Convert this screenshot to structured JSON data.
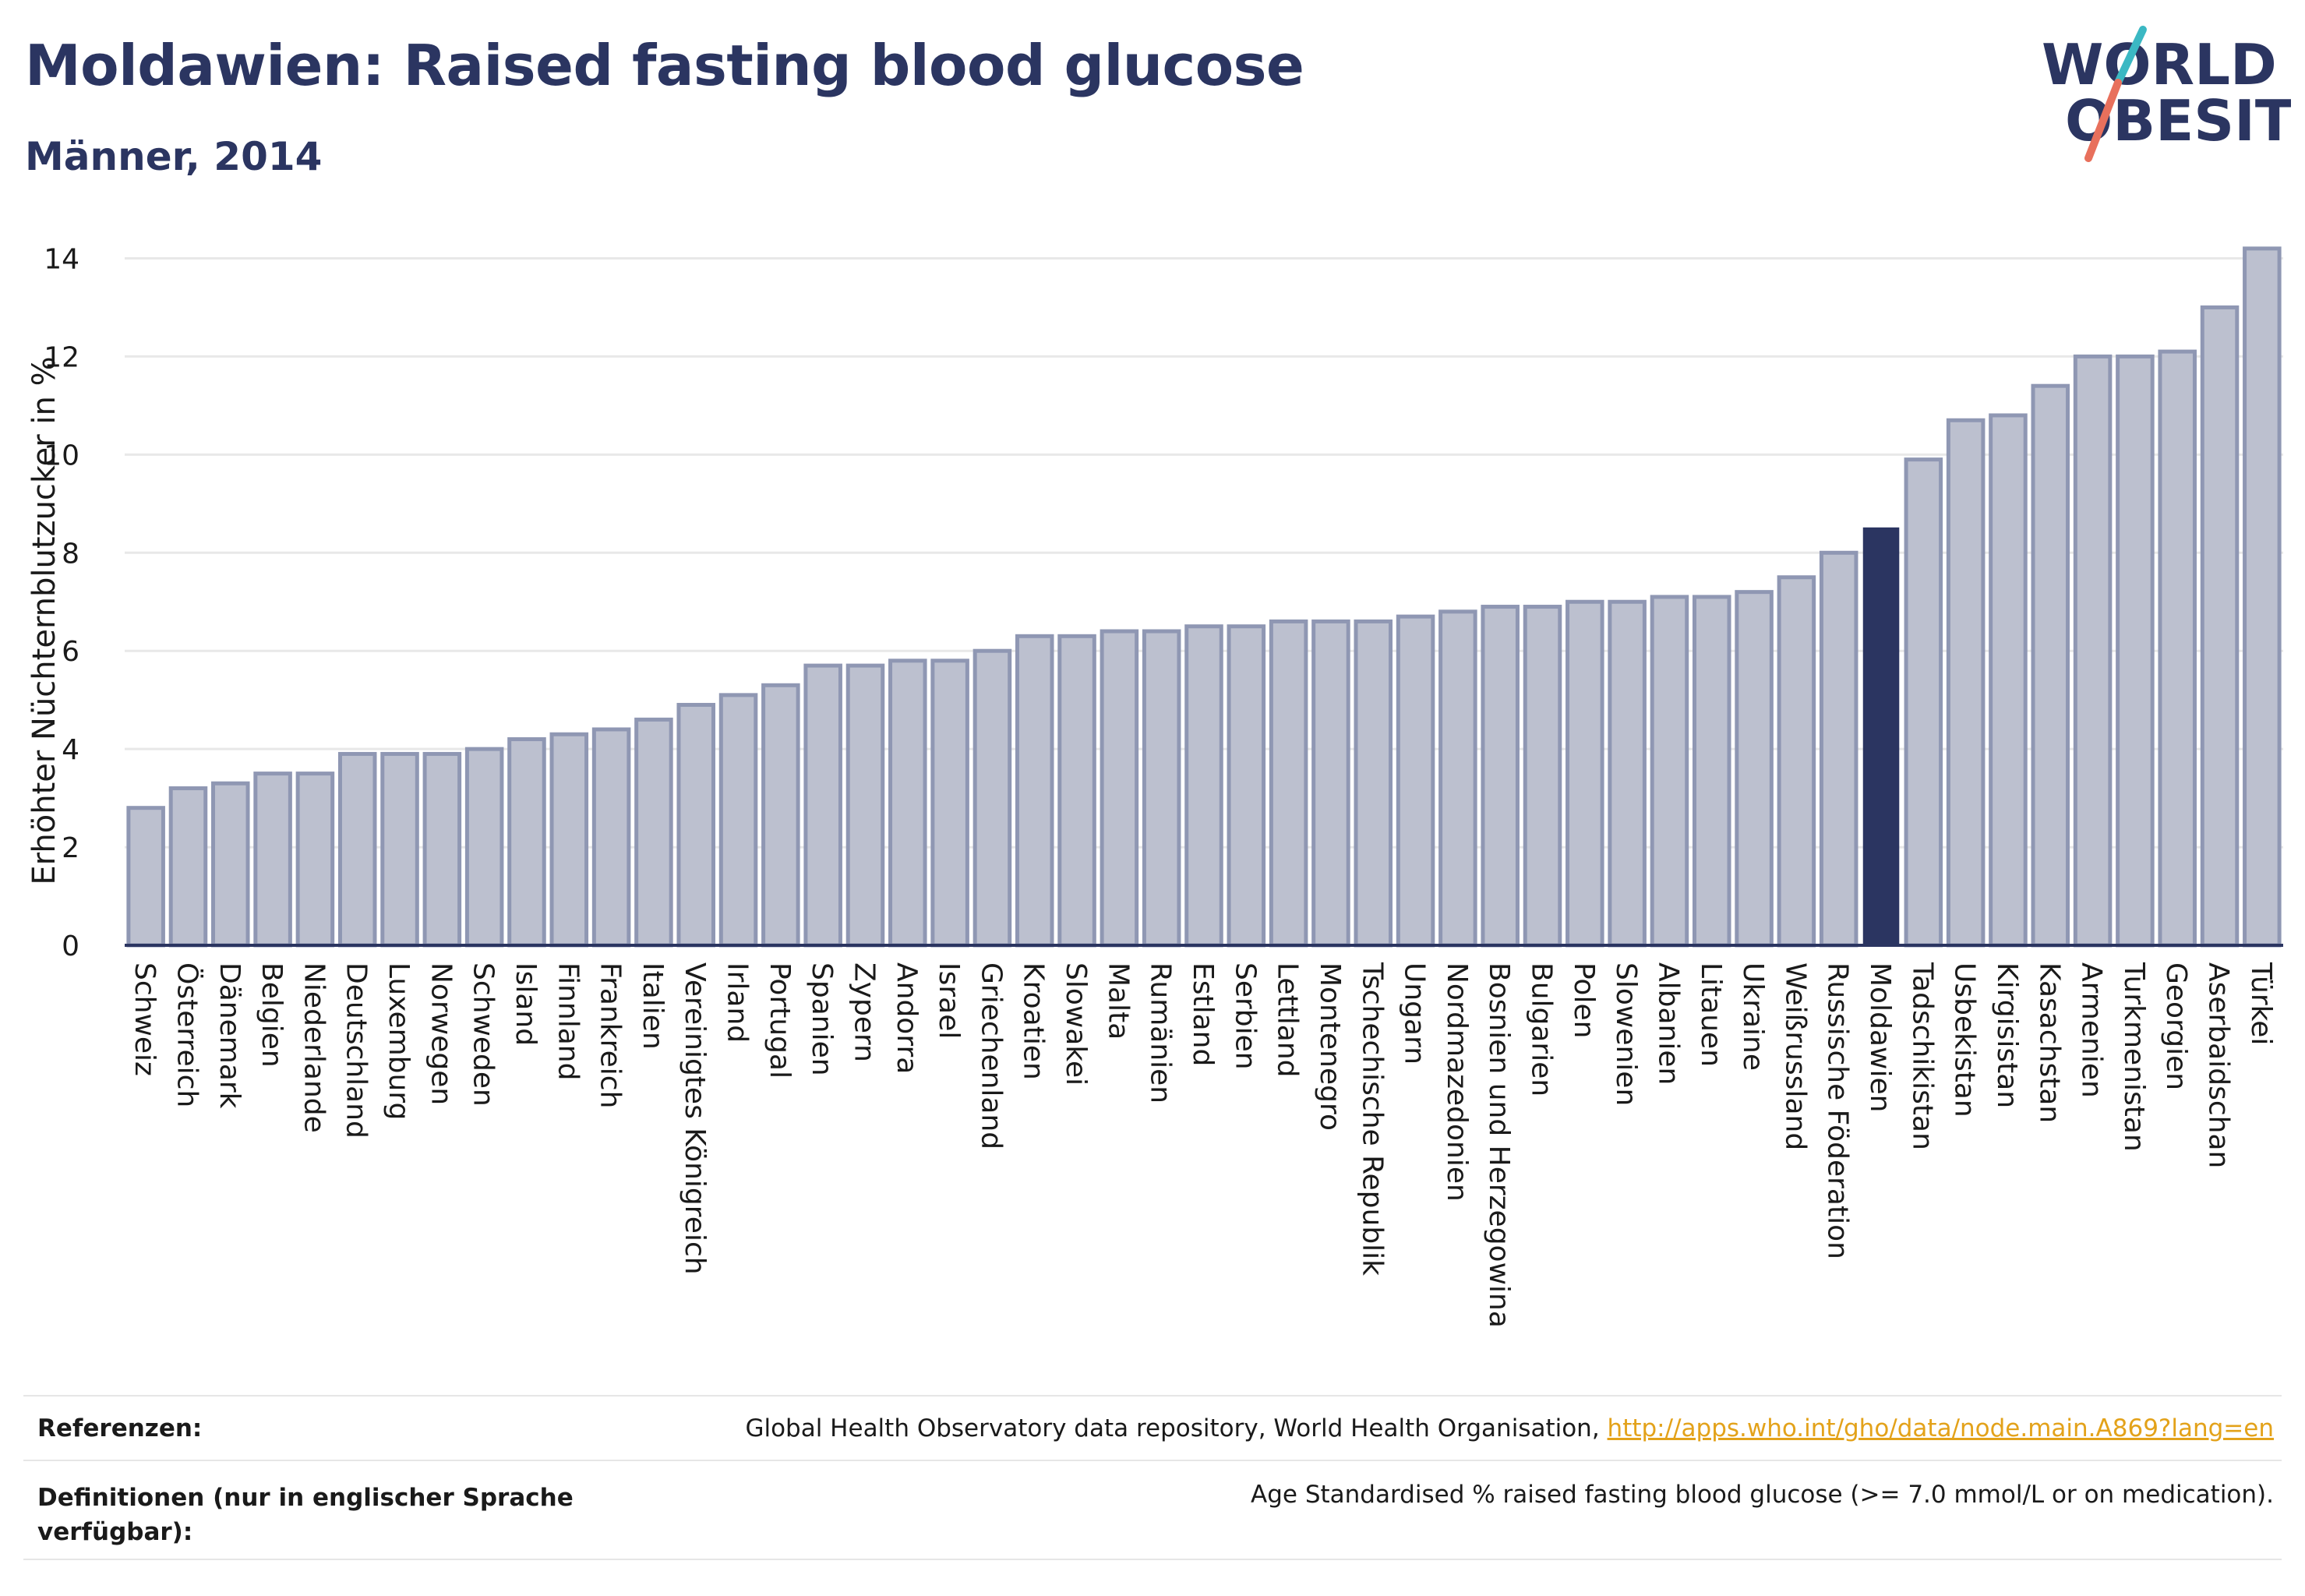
{
  "header": {
    "title": "Moldawien: Raised fasting blood glucose",
    "subtitle": "Männer, 2014"
  },
  "logo": {
    "line1": "WORLD",
    "line2": "OBESITY"
  },
  "colors": {
    "bar_fill": "#bcc0cf",
    "bar_stroke": "#8f97b3",
    "highlight": "#2b3561",
    "grid": "#e8e8e8",
    "axis": "#2b3561",
    "link": "#e3a21a",
    "logo_teal": "#3bb8c3",
    "logo_coral": "#e8705c"
  },
  "chart_data": {
    "type": "bar",
    "ylabel": "Erhöhter Nüchternblutzucker in %",
    "ylim": [
      0,
      14.5
    ],
    "yticks": [
      0,
      2,
      4,
      6,
      8,
      10,
      12,
      14
    ],
    "grid": true,
    "highlight": "Moldawien",
    "categories": [
      "Schweiz",
      "Österreich",
      "Dänemark",
      "Belgien",
      "Niederlande",
      "Deutschland",
      "Luxemburg",
      "Norwegen",
      "Schweden",
      "Island",
      "Finnland",
      "Frankreich",
      "Italien",
      "Vereinigtes Königreich",
      "Irland",
      "Portugal",
      "Spanien",
      "Zypern",
      "Andorra",
      "Israel",
      "Griechenland",
      "Kroatien",
      "Slowakei",
      "Malta",
      "Rumänien",
      "Estland",
      "Serbien",
      "Lettland",
      "Montenegro",
      "Tschechische Republik",
      "Ungarn",
      "Nordmazedonien",
      "Bosnien und Herzegowina",
      "Bulgarien",
      "Polen",
      "Slowenien",
      "Albanien",
      "Litauen",
      "Ukraine",
      "Weißrussland",
      "Russische Föderation",
      "Moldawien",
      "Tadschikistan",
      "Usbekistan",
      "Kirgisistan",
      "Kasachstan",
      "Armenien",
      "Turkmenistan",
      "Georgien",
      "Aserbaidschan",
      "Türkei"
    ],
    "values": [
      2.8,
      3.2,
      3.3,
      3.5,
      3.5,
      3.9,
      3.9,
      3.9,
      4.0,
      4.2,
      4.3,
      4.4,
      4.6,
      4.9,
      5.1,
      5.3,
      5.7,
      5.7,
      5.8,
      5.8,
      6.0,
      6.3,
      6.3,
      6.4,
      6.4,
      6.5,
      6.5,
      6.6,
      6.6,
      6.6,
      6.7,
      6.8,
      6.9,
      6.9,
      7.0,
      7.0,
      7.1,
      7.1,
      7.2,
      7.5,
      8.0,
      8.5,
      9.9,
      10.7,
      10.8,
      11.4,
      12.0,
      12.0,
      12.1,
      13.0,
      14.2
    ]
  },
  "footer": {
    "ref_label": "Referenzen:",
    "ref_text": "Global Health Observatory data repository, World Health Organisation, ",
    "ref_link": "http://apps.who.int/gho/data/node.main.A869?lang=en",
    "def_label": "Definitionen (nur in englischer Sprache verfügbar):",
    "def_text": "Age Standardised % raised fasting blood glucose (>= 7.0 mmol/L or on medication)."
  }
}
